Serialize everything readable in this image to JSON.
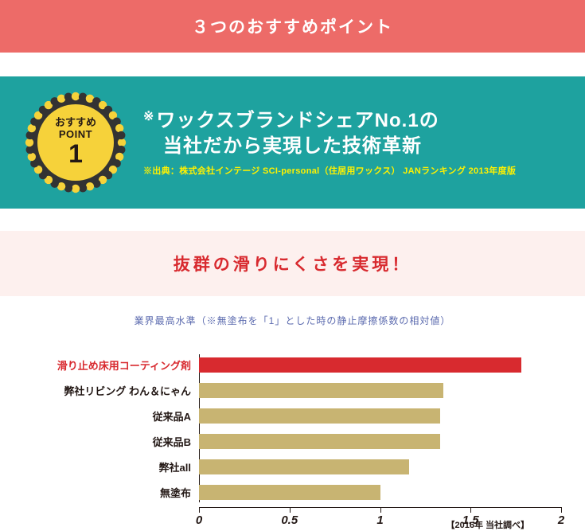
{
  "header": {
    "title": "３つのおすすめポイント",
    "bg": "#ed6b68"
  },
  "teal": {
    "bg": "#1ea29f",
    "badge": {
      "line1": "おすすめ",
      "line2": "POINT",
      "number": "1",
      "fill": "#f6d23a",
      "scallop_dark": "#333333",
      "scallop_light": "#f6d23a"
    },
    "headline1": "ワックスブランドシェアNo.1の",
    "headline2": "当社だから実現した技術革新",
    "source": "※出典：株式会社インテージ SCI-personal（住居用ワックス） JANランキング 2013年度版",
    "source_color": "#fff100"
  },
  "pink": {
    "bg": "#fdf0ee",
    "title": "抜群の滑りにくさを実現！"
  },
  "emphasis_red": "#d82a2f",
  "subcaption": {
    "text": "業界最高水準（※無塗布を「1」とした時の静止摩擦係数の相対値）",
    "color": "#5c6baf"
  },
  "chart": {
    "type": "bar-horizontal",
    "xmin": 0,
    "xmax": 2,
    "ticks": [
      0,
      0.5,
      1,
      1.5,
      2
    ],
    "tick_labels": [
      "0",
      "0.5",
      "1",
      "1.5",
      "2"
    ],
    "bar_color_default": "#c8b472",
    "bar_color_highlight": "#d82a2f",
    "bars": [
      {
        "label": "滑り止め床用コーティング剤",
        "value": 1.78,
        "highlight": true
      },
      {
        "label": "弊社リビング わん＆にゃん",
        "value": 1.35,
        "highlight": false
      },
      {
        "label": "従来品A",
        "value": 1.33,
        "highlight": false
      },
      {
        "label": "従来品B",
        "value": 1.33,
        "highlight": false
      },
      {
        "label": "弊社all",
        "value": 1.16,
        "highlight": false
      },
      {
        "label": "無塗布",
        "value": 1.0,
        "highlight": false
      }
    ],
    "footnote": "【2016年 当社調べ】"
  }
}
